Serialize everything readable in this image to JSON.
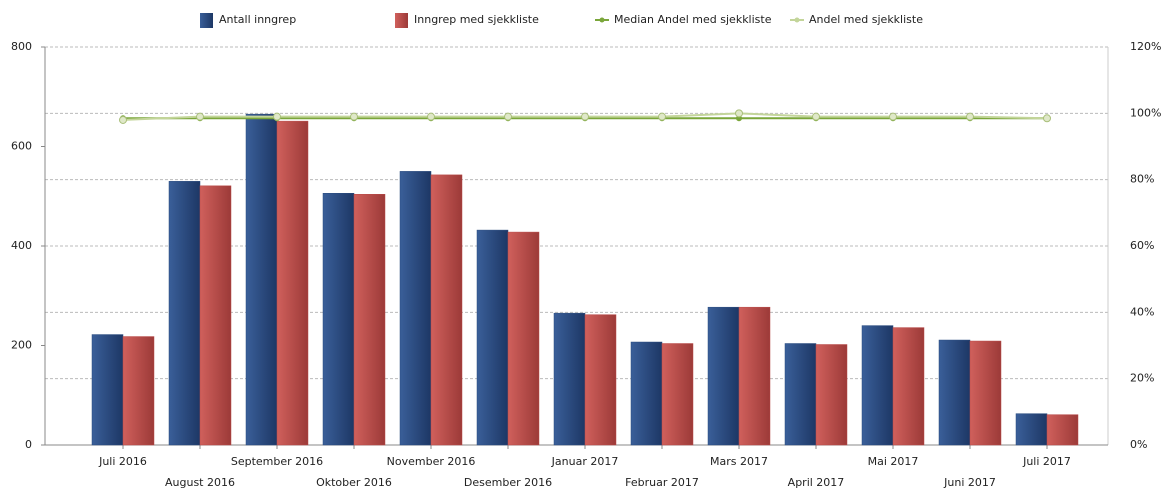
{
  "chart_data": {
    "type": "bar-line",
    "categories": [
      "Juli 2016",
      "August 2016",
      "September 2016",
      "Oktober 2016",
      "November 2016",
      "Desember 2016",
      "Januar 2017",
      "Februar 2017",
      "Mars 2017",
      "April 2017",
      "Mai 2017",
      "Juni 2017",
      "Juli 2017"
    ],
    "series": [
      {
        "name": "Antall inngrep",
        "type": "bar",
        "color": "#284a7e",
        "values": [
          222,
          530,
          665,
          506,
          550,
          432,
          265,
          207,
          277,
          204,
          240,
          211,
          63
        ]
      },
      {
        "name": "Inngrep med sjekkliste",
        "type": "bar",
        "color": "#b84a48",
        "values": [
          218,
          521,
          651,
          504,
          543,
          428,
          262,
          204,
          277,
          202,
          236,
          209,
          61
        ]
      },
      {
        "name": "Median Andel med sjekkliste",
        "type": "line",
        "axis": "y2",
        "color": "#7aa63a",
        "values": [
          98.5,
          98.5,
          98.5,
          98.5,
          98.5,
          98.5,
          98.5,
          98.5,
          98.5,
          98.5,
          98.5,
          98.5,
          98.5
        ]
      },
      {
        "name": "Andel med sjekkliste",
        "type": "line",
        "axis": "y2",
        "color": "#c3d59a",
        "values": [
          98,
          99,
          99,
          99,
          99,
          99,
          99,
          99,
          100,
          99,
          99,
          99,
          98.5
        ]
      }
    ],
    "ylim": [
      0,
      800
    ],
    "yticks": [
      0,
      200,
      400,
      600,
      800
    ],
    "y2lim": [
      0,
      120
    ],
    "y2ticks": [
      {
        "value": 0,
        "label": "0%"
      },
      {
        "value": 20,
        "label": "20%"
      },
      {
        "value": 40,
        "label": "40%"
      },
      {
        "value": 60,
        "label": "60%"
      },
      {
        "value": 80,
        "label": "80%"
      },
      {
        "value": 100,
        "label": "100%"
      },
      {
        "value": 120,
        "label": "120%"
      }
    ],
    "grid": true,
    "legend": "top"
  }
}
